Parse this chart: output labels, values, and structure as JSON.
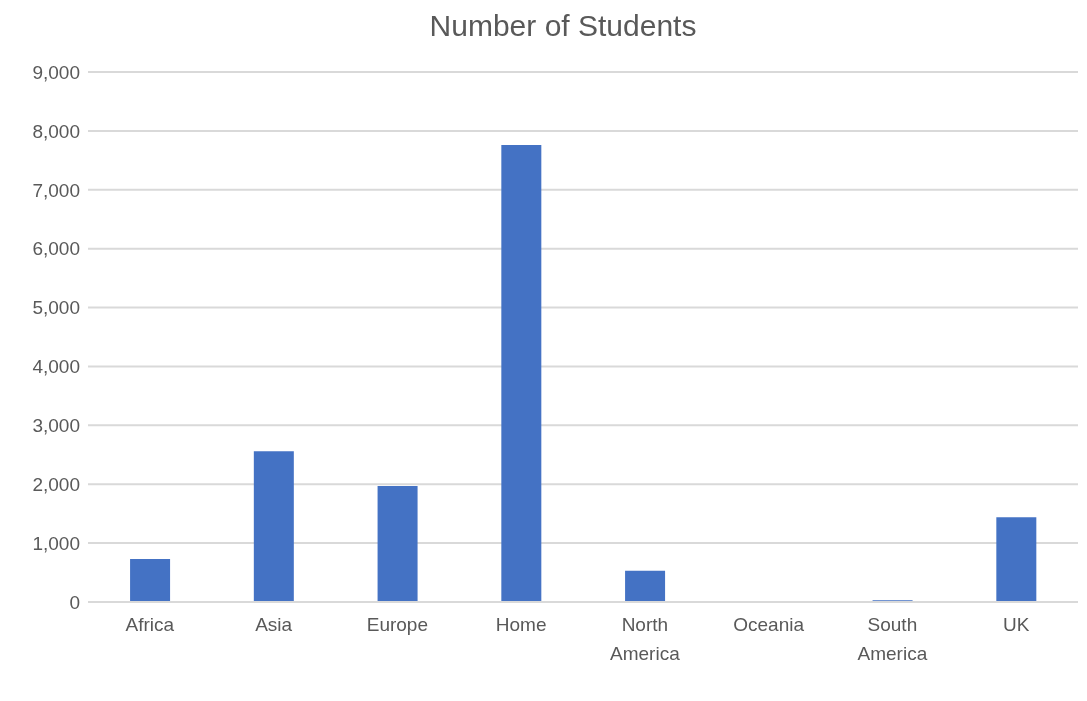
{
  "chart_data": {
    "type": "bar",
    "title": "Number of Students",
    "categories": [
      "Africa",
      "Asia",
      "Europe",
      "Home",
      "North America",
      "Oceania",
      "South America",
      "UK"
    ],
    "values": [
      730,
      2560,
      1970,
      7760,
      530,
      0,
      30,
      1440
    ],
    "color": "#4472c4",
    "ylim": [
      0,
      9000
    ],
    "yticks": [
      0,
      {
        "value": 1000,
        "label": "1,000"
      },
      {
        "value": 2000,
        "label": "2,000"
      },
      {
        "value": 3000,
        "label": "3,000"
      },
      {
        "value": 4000,
        "label": "4,000"
      },
      {
        "value": 5000,
        "label": "5,000"
      },
      {
        "value": 6000,
        "label": "6,000"
      },
      {
        "value": 7000,
        "label": "7,000"
      },
      {
        "value": 8000,
        "label": "8,000"
      },
      {
        "value": 9000,
        "label": "9,000"
      }
    ],
    "grid": "y"
  }
}
